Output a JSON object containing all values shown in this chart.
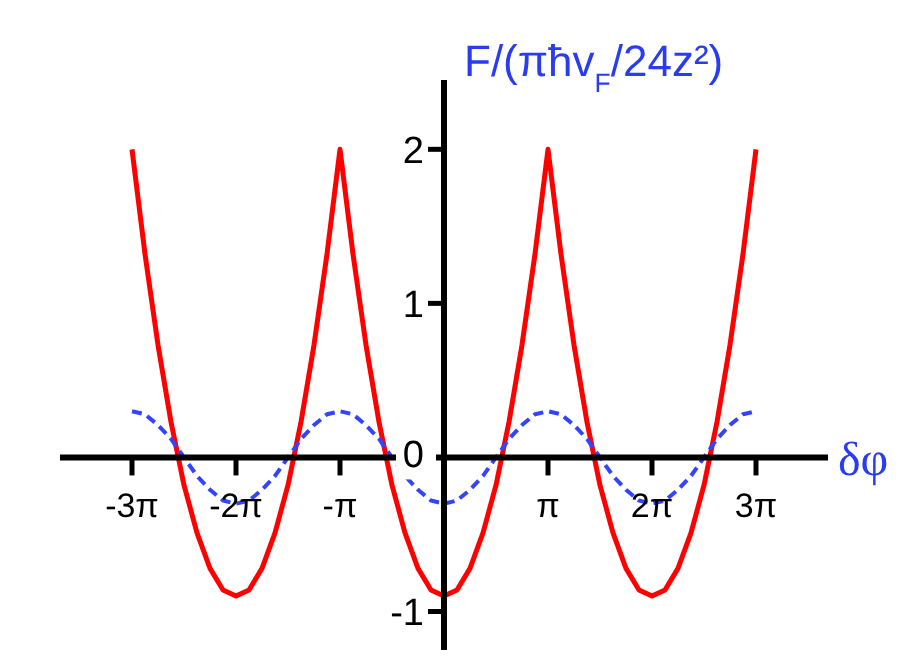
{
  "chart_data": {
    "type": "line",
    "xlabel": "δφ",
    "ylabel": "F/(πħv$_{F}$/24z²)",
    "x": [
      -9.4248,
      -9.0321,
      -8.6394,
      -8.2467,
      -7.854,
      -7.4613,
      -7.0686,
      -6.6759,
      -6.2832,
      -5.8905,
      -5.4978,
      -5.1051,
      -4.7124,
      -4.3197,
      -3.927,
      -3.5343,
      -3.1416,
      -2.7489,
      -2.3562,
      -1.9635,
      -1.5708,
      -1.1781,
      -0.7854,
      -0.3927,
      0,
      0.3927,
      0.7854,
      1.1781,
      1.5708,
      1.9635,
      2.3562,
      2.7489,
      3.1416,
      3.5343,
      3.927,
      4.3197,
      4.7124,
      5.1051,
      5.4978,
      5.8905,
      6.2832,
      6.6759,
      7.0686,
      7.4613,
      7.854,
      8.2467,
      8.6394,
      9.0321,
      9.4248
    ],
    "series": [
      {
        "color": "#ff0000",
        "line_style": "solid",
        "values": [
          2.0,
          1.32,
          0.73,
          0.23,
          -0.18,
          -0.49,
          -0.72,
          -0.86,
          -0.9,
          -0.86,
          -0.72,
          -0.49,
          -0.18,
          0.23,
          0.73,
          1.32,
          2.0,
          1.32,
          0.73,
          0.23,
          -0.18,
          -0.49,
          -0.72,
          -0.86,
          -0.9,
          -0.86,
          -0.72,
          -0.49,
          -0.18,
          0.23,
          0.73,
          1.32,
          2.0,
          1.32,
          0.73,
          0.23,
          -0.18,
          -0.49,
          -0.72,
          -0.86,
          -0.9,
          -0.86,
          -0.72,
          -0.49,
          -0.18,
          0.23,
          0.73,
          1.32,
          2.0
        ]
      },
      {
        "color": "#3344ff",
        "line_style": "dashed",
        "values": [
          0.3,
          0.28,
          0.21,
          0.12,
          0,
          -0.12,
          -0.21,
          -0.28,
          -0.3,
          -0.28,
          -0.21,
          -0.12,
          0,
          0.12,
          0.21,
          0.28,
          0.3,
          0.28,
          0.21,
          0.12,
          0,
          -0.12,
          -0.21,
          -0.28,
          -0.3,
          -0.28,
          -0.21,
          -0.12,
          0,
          0.12,
          0.21,
          0.28,
          0.3,
          0.28,
          0.21,
          0.12,
          0,
          -0.12,
          -0.21,
          -0.28,
          -0.3,
          -0.28,
          -0.21,
          -0.12,
          0,
          0.12,
          0.21,
          0.28,
          0.3
        ]
      }
    ],
    "xlim": [
      -11.6,
      11.6
    ],
    "ylim": [
      -1.25,
      2.45
    ],
    "xticks": [
      {
        "value": -9.4248,
        "label": "-3π"
      },
      {
        "value": -6.2832,
        "label": "-2π"
      },
      {
        "value": -3.1416,
        "label": "-π"
      },
      {
        "value": 3.1416,
        "label": "π"
      },
      {
        "value": 6.2832,
        "label": "2π"
      },
      {
        "value": 9.4248,
        "label": "3π"
      }
    ],
    "yticks": [
      -1,
      0,
      1,
      2
    ]
  }
}
